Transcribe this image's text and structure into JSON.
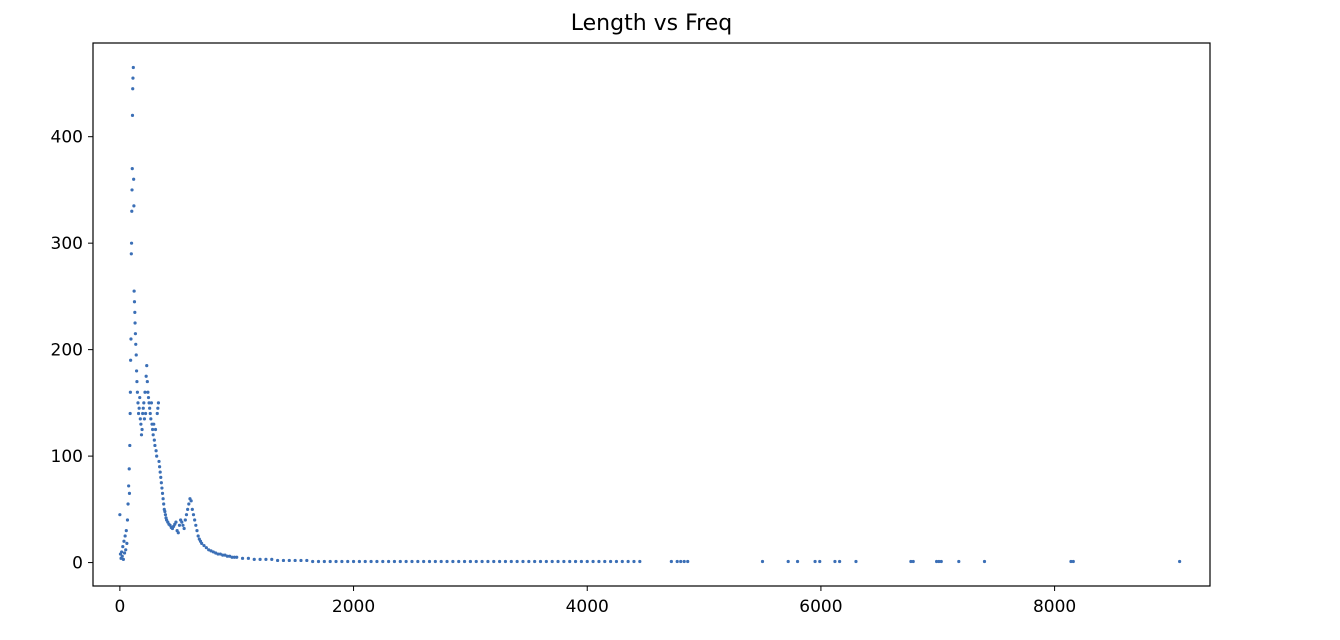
{
  "chart_data": {
    "type": "scatter",
    "title": "Length vs Freq",
    "xlabel": "",
    "ylabel": "",
    "xlim": [
      -230,
      9330
    ],
    "ylim": [
      -22,
      488
    ],
    "xticks": [
      0,
      2000,
      4000,
      6000,
      8000
    ],
    "xtick_labels": [
      "0",
      "2000",
      "4000",
      "6000",
      "8000"
    ],
    "yticks": [
      0,
      100,
      200,
      300,
      400
    ],
    "ytick_labels": [
      "0",
      "100",
      "200",
      "300",
      "400"
    ],
    "grid": false,
    "legend": "none",
    "marker_color": "#3b6fb6",
    "series": [
      {
        "points": [
          [
            0,
            45
          ],
          [
            5,
            8
          ],
          [
            10,
            4
          ],
          [
            15,
            10
          ],
          [
            20,
            6
          ],
          [
            25,
            15
          ],
          [
            30,
            3
          ],
          [
            35,
            20
          ],
          [
            40,
            9
          ],
          [
            45,
            25
          ],
          [
            50,
            12
          ],
          [
            55,
            30
          ],
          [
            60,
            18
          ],
          [
            65,
            40
          ],
          [
            70,
            55
          ],
          [
            75,
            72
          ],
          [
            80,
            88
          ],
          [
            82,
            65
          ],
          [
            85,
            110
          ],
          [
            88,
            140
          ],
          [
            90,
            160
          ],
          [
            92,
            190
          ],
          [
            95,
            210
          ],
          [
            98,
            290
          ],
          [
            100,
            300
          ],
          [
            102,
            330
          ],
          [
            104,
            350
          ],
          [
            106,
            370
          ],
          [
            108,
            420
          ],
          [
            110,
            445
          ],
          [
            112,
            455
          ],
          [
            115,
            465
          ],
          [
            118,
            360
          ],
          [
            120,
            335
          ],
          [
            122,
            255
          ],
          [
            125,
            245
          ],
          [
            128,
            235
          ],
          [
            130,
            225
          ],
          [
            133,
            215
          ],
          [
            136,
            205
          ],
          [
            140,
            195
          ],
          [
            143,
            180
          ],
          [
            146,
            170
          ],
          [
            150,
            160
          ],
          [
            155,
            150
          ],
          [
            160,
            140
          ],
          [
            165,
            145
          ],
          [
            170,
            155
          ],
          [
            175,
            135
          ],
          [
            180,
            130
          ],
          [
            185,
            120
          ],
          [
            190,
            125
          ],
          [
            195,
            140
          ],
          [
            200,
            145
          ],
          [
            205,
            150
          ],
          [
            210,
            135
          ],
          [
            215,
            160
          ],
          [
            220,
            140
          ],
          [
            225,
            175
          ],
          [
            230,
            185
          ],
          [
            235,
            170
          ],
          [
            240,
            160
          ],
          [
            245,
            155
          ],
          [
            250,
            150
          ],
          [
            255,
            145
          ],
          [
            260,
            140
          ],
          [
            265,
            135
          ],
          [
            270,
            150
          ],
          [
            275,
            130
          ],
          [
            280,
            125
          ],
          [
            285,
            120
          ],
          [
            290,
            130
          ],
          [
            295,
            115
          ],
          [
            300,
            110
          ],
          [
            305,
            125
          ],
          [
            310,
            105
          ],
          [
            315,
            100
          ],
          [
            320,
            140
          ],
          [
            325,
            145
          ],
          [
            330,
            150
          ],
          [
            335,
            95
          ],
          [
            340,
            90
          ],
          [
            345,
            85
          ],
          [
            350,
            80
          ],
          [
            355,
            75
          ],
          [
            360,
            70
          ],
          [
            365,
            65
          ],
          [
            370,
            60
          ],
          [
            375,
            55
          ],
          [
            380,
            50
          ],
          [
            385,
            48
          ],
          [
            390,
            45
          ],
          [
            395,
            42
          ],
          [
            400,
            40
          ],
          [
            410,
            38
          ],
          [
            420,
            36
          ],
          [
            430,
            35
          ],
          [
            440,
            33
          ],
          [
            450,
            32
          ],
          [
            460,
            34
          ],
          [
            470,
            36
          ],
          [
            480,
            38
          ],
          [
            490,
            30
          ],
          [
            500,
            28
          ],
          [
            510,
            35
          ],
          [
            520,
            40
          ],
          [
            530,
            38
          ],
          [
            540,
            35
          ],
          [
            550,
            32
          ],
          [
            560,
            40
          ],
          [
            570,
            45
          ],
          [
            580,
            50
          ],
          [
            590,
            55
          ],
          [
            600,
            60
          ],
          [
            610,
            58
          ],
          [
            620,
            50
          ],
          [
            630,
            45
          ],
          [
            640,
            40
          ],
          [
            650,
            35
          ],
          [
            660,
            30
          ],
          [
            670,
            25
          ],
          [
            680,
            22
          ],
          [
            690,
            20
          ],
          [
            700,
            18
          ],
          [
            720,
            16
          ],
          [
            740,
            14
          ],
          [
            760,
            12
          ],
          [
            780,
            11
          ],
          [
            800,
            10
          ],
          [
            820,
            9
          ],
          [
            840,
            8
          ],
          [
            860,
            8
          ],
          [
            880,
            7
          ],
          [
            900,
            7
          ],
          [
            920,
            6
          ],
          [
            940,
            6
          ],
          [
            960,
            5
          ],
          [
            980,
            5
          ],
          [
            1000,
            5
          ],
          [
            1050,
            4
          ],
          [
            1100,
            4
          ],
          [
            1150,
            3
          ],
          [
            1200,
            3
          ],
          [
            1250,
            3
          ],
          [
            1300,
            3
          ],
          [
            1350,
            2
          ],
          [
            1400,
            2
          ],
          [
            1450,
            2
          ],
          [
            1500,
            2
          ],
          [
            1550,
            2
          ],
          [
            1600,
            2
          ],
          [
            1650,
            1
          ],
          [
            1700,
            1
          ],
          [
            1750,
            1
          ],
          [
            1800,
            1
          ],
          [
            1850,
            1
          ],
          [
            1900,
            1
          ],
          [
            1950,
            1
          ],
          [
            2000,
            1
          ],
          [
            2050,
            1
          ],
          [
            2100,
            1
          ],
          [
            2150,
            1
          ],
          [
            2200,
            1
          ],
          [
            2250,
            1
          ],
          [
            2300,
            1
          ],
          [
            2350,
            1
          ],
          [
            2400,
            1
          ],
          [
            2450,
            1
          ],
          [
            2500,
            1
          ],
          [
            2550,
            1
          ],
          [
            2600,
            1
          ],
          [
            2650,
            1
          ],
          [
            2700,
            1
          ],
          [
            2750,
            1
          ],
          [
            2800,
            1
          ],
          [
            2850,
            1
          ],
          [
            2900,
            1
          ],
          [
            2950,
            1
          ],
          [
            3000,
            1
          ],
          [
            3050,
            1
          ],
          [
            3100,
            1
          ],
          [
            3150,
            1
          ],
          [
            3200,
            1
          ],
          [
            3250,
            1
          ],
          [
            3300,
            1
          ],
          [
            3350,
            1
          ],
          [
            3400,
            1
          ],
          [
            3450,
            1
          ],
          [
            3500,
            1
          ],
          [
            3550,
            1
          ],
          [
            3600,
            1
          ],
          [
            3650,
            1
          ],
          [
            3700,
            1
          ],
          [
            3750,
            1
          ],
          [
            3800,
            1
          ],
          [
            3850,
            1
          ],
          [
            3900,
            1
          ],
          [
            3950,
            1
          ],
          [
            4000,
            1
          ],
          [
            4050,
            1
          ],
          [
            4100,
            1
          ],
          [
            4150,
            1
          ],
          [
            4200,
            1
          ],
          [
            4250,
            1
          ],
          [
            4300,
            1
          ],
          [
            4350,
            1
          ],
          [
            4400,
            1
          ],
          [
            4450,
            1
          ],
          [
            4720,
            1
          ],
          [
            4770,
            1
          ],
          [
            4800,
            1
          ],
          [
            4830,
            1
          ],
          [
            4860,
            1
          ],
          [
            5500,
            1
          ],
          [
            5720,
            1
          ],
          [
            5800,
            1
          ],
          [
            5950,
            1
          ],
          [
            5990,
            1
          ],
          [
            6120,
            1
          ],
          [
            6160,
            1
          ],
          [
            6300,
            1
          ],
          [
            6770,
            1
          ],
          [
            6790,
            1
          ],
          [
            6990,
            1
          ],
          [
            7010,
            1
          ],
          [
            7030,
            1
          ],
          [
            7180,
            1
          ],
          [
            7400,
            1
          ],
          [
            8140,
            1
          ],
          [
            8160,
            1
          ],
          [
            9070,
            1
          ]
        ]
      }
    ]
  }
}
